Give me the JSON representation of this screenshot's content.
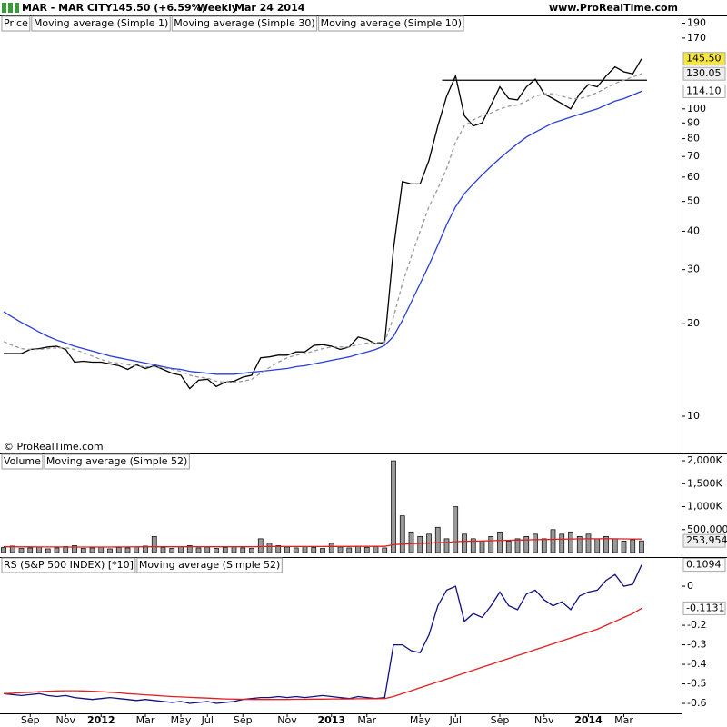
{
  "header": {
    "title": "MAR - MAR CITY",
    "quote": "145.50 (+6.59%)",
    "period": "Weekly",
    "date": "Mar 24 2014",
    "site": "www.ProRealTime.com",
    "copyright": "© ProRealTime.com"
  },
  "chart_data": [
    {
      "type": "line",
      "legend_title": "Price",
      "log_scale": true,
      "ylim": [
        7.67,
        200
      ],
      "yticks": [
        10,
        20,
        30,
        40,
        50,
        60,
        70,
        80,
        90,
        100,
        170,
        190
      ],
      "resistance": 124,
      "series": [
        {
          "name": "Moving average (Simple 1)",
          "color": "#000000",
          "legend_color": "#1a1a80",
          "label_fill": "#f5e642",
          "last_label": "145.50",
          "values": [
            16,
            16,
            16,
            16.5,
            16.6,
            16.8,
            16.9,
            16.5,
            15,
            15.1,
            15,
            15,
            14.8,
            14.6,
            14.2,
            14.7,
            14.3,
            14.6,
            14.2,
            13.8,
            13.6,
            12.3,
            13.1,
            13.2,
            12.5,
            12.9,
            13,
            13.4,
            13.6,
            15.5,
            15.6,
            15.8,
            15.8,
            16.2,
            16.2,
            17,
            17.1,
            16.9,
            16.5,
            16.8,
            18.1,
            17.8,
            17.2,
            17.4,
            35,
            58,
            57,
            57,
            68,
            88,
            110,
            128,
            95,
            88,
            90,
            103,
            118,
            108,
            107,
            118,
            125,
            112,
            108,
            104,
            100,
            112,
            120,
            118,
            128,
            137,
            132,
            130,
            145.5
          ]
        },
        {
          "name": "Moving average (Simple 30)",
          "color": "#2a3fd6",
          "label_fill": "#ffffff",
          "last_label": "114.10",
          "values": [
            21.9,
            21,
            20.2,
            19.5,
            18.8,
            18.2,
            17.7,
            17.3,
            16.9,
            16.6,
            16.3,
            16,
            15.7,
            15.5,
            15.3,
            15.1,
            14.9,
            14.7,
            14.5,
            14.3,
            14.2,
            14,
            13.9,
            13.8,
            13.7,
            13.7,
            13.7,
            13.8,
            13.9,
            14,
            14.1,
            14.2,
            14.3,
            14.5,
            14.6,
            14.8,
            15,
            15.2,
            15.4,
            15.6,
            15.9,
            16.2,
            16.5,
            17,
            18.2,
            20.5,
            23.5,
            27,
            31,
            36,
            42,
            48,
            53,
            57,
            61,
            65,
            69,
            73,
            77,
            81,
            84,
            87,
            90,
            92,
            94,
            96,
            98,
            100,
            103,
            106,
            108,
            111,
            114.1
          ]
        },
        {
          "name": "Moving average (Simple 10)",
          "color": "#999999",
          "dashed": true,
          "label_fill": "#eeeeee",
          "last_label": "130.05",
          "values": [
            17.5,
            17,
            16.6,
            16.5,
            16.5,
            16.6,
            16.7,
            16.7,
            16.5,
            16.1,
            15.7,
            15.3,
            15,
            14.9,
            14.7,
            14.6,
            14.5,
            14.5,
            14.4,
            14.2,
            14,
            13.6,
            13.4,
            13.3,
            13,
            12.9,
            12.9,
            13,
            13.2,
            13.8,
            14.4,
            15,
            15.5,
            15.8,
            16,
            16.3,
            16.6,
            16.8,
            16.8,
            16.8,
            17.1,
            17.3,
            17.4,
            17.4,
            21,
            27,
            33,
            40,
            48,
            55,
            64,
            78,
            88,
            92,
            95,
            97,
            100,
            102,
            103,
            106,
            110,
            112,
            112,
            110,
            108,
            108,
            110,
            113,
            117,
            121,
            124,
            127,
            130.05
          ]
        }
      ]
    },
    {
      "type": "bar",
      "ylim": [
        0,
        2140000
      ],
      "yticks": [
        {
          "value": 500000,
          "label": "500,000"
        },
        {
          "value": 1000000,
          "label": "1,000K"
        },
        {
          "value": 1500000,
          "label": "1,500K"
        },
        {
          "value": 2000000,
          "label": "2,000K"
        }
      ],
      "series": [
        {
          "name": "Volume",
          "kind": "bar",
          "color": "#999999",
          "label_fill": "#eeeeee",
          "last_label": "253,954",
          "values": [
            110000,
            140000,
            90000,
            100000,
            120000,
            80000,
            100000,
            130000,
            150000,
            90000,
            100000,
            120000,
            80000,
            110000,
            100000,
            120000,
            140000,
            350000,
            110000,
            90000,
            130000,
            150000,
            100000,
            120000,
            90000,
            110000,
            130000,
            100000,
            90000,
            300000,
            200000,
            150000,
            120000,
            100000,
            130000,
            110000,
            90000,
            200000,
            120000,
            100000,
            140000,
            110000,
            130000,
            100000,
            2000000,
            800000,
            450000,
            350000,
            400000,
            550000,
            300000,
            1000000,
            400000,
            300000,
            250000,
            350000,
            450000,
            250000,
            300000,
            350000,
            400000,
            300000,
            500000,
            400000,
            450000,
            350000,
            400000,
            300000,
            350000,
            300000,
            250000,
            280000,
            253954
          ]
        },
        {
          "name": "Moving average (Simple 52)",
          "kind": "line",
          "color": "#e02020",
          "values": [
            125000,
            124000,
            123000,
            122000,
            121000,
            120000,
            120000,
            119000,
            119000,
            118000,
            118000,
            118000,
            119000,
            120000,
            121000,
            122000,
            124000,
            125000,
            125000,
            125000,
            125000,
            126000,
            126000,
            126000,
            125000,
            125000,
            125000,
            124000,
            124000,
            128000,
            130000,
            130000,
            130000,
            130000,
            131000,
            131000,
            131000,
            133000,
            133000,
            133000,
            134000,
            134000,
            134000,
            134000,
            170000,
            185000,
            192000,
            198000,
            205000,
            215000,
            220000,
            238000,
            244000,
            248000,
            252000,
            258000,
            265000,
            268000,
            272000,
            276000,
            280000,
            283000,
            288000,
            292000,
            296000,
            298000,
            300000,
            300000,
            302000,
            300000,
            298000,
            296000,
            294000
          ]
        }
      ]
    },
    {
      "type": "line",
      "ylim": [
        -0.651,
        0.14
      ],
      "yticks": [
        0,
        -0.2,
        -0.3,
        -0.4,
        -0.5,
        -0.6
      ],
      "categories": [
        null,
        null,
        null,
        "Sep",
        null,
        null,
        null,
        "Nov",
        null,
        null,
        null,
        "2012",
        null,
        null,
        null,
        null,
        "Mar",
        null,
        null,
        null,
        "May",
        null,
        null,
        "Jul",
        null,
        null,
        null,
        "Sep",
        null,
        null,
        null,
        null,
        "Nov",
        null,
        null,
        null,
        null,
        "2013",
        null,
        null,
        null,
        "Mar",
        null,
        null,
        null,
        null,
        null,
        "May",
        null,
        null,
        null,
        "Jul",
        null,
        null,
        null,
        null,
        "Sep",
        null,
        null,
        null,
        null,
        "Nov",
        null,
        null,
        null,
        null,
        "2014",
        null,
        null,
        null,
        "Mar",
        null,
        null
      ],
      "series": [
        {
          "name": "RS (S&P 500 INDEX) [*10]",
          "color": "#101080",
          "label_fill": "#ffffff",
          "last_label": "0.1094",
          "values": [
            -0.55,
            -0.555,
            -0.56,
            -0.555,
            -0.55,
            -0.56,
            -0.565,
            -0.56,
            -0.57,
            -0.575,
            -0.58,
            -0.575,
            -0.57,
            -0.575,
            -0.58,
            -0.585,
            -0.58,
            -0.585,
            -0.59,
            -0.595,
            -0.59,
            -0.6,
            -0.595,
            -0.59,
            -0.6,
            -0.595,
            -0.59,
            -0.58,
            -0.575,
            -0.57,
            -0.57,
            -0.565,
            -0.57,
            -0.565,
            -0.57,
            -0.565,
            -0.56,
            -0.565,
            -0.57,
            -0.575,
            -0.565,
            -0.57,
            -0.575,
            -0.57,
            -0.3,
            -0.3,
            -0.33,
            -0.34,
            -0.25,
            -0.1,
            -0.02,
            0,
            -0.18,
            -0.14,
            -0.16,
            -0.1,
            -0.03,
            -0.1,
            -0.12,
            -0.04,
            -0.02,
            -0.07,
            -0.1,
            -0.08,
            -0.12,
            -0.05,
            -0.03,
            -0.02,
            0.03,
            0.06,
            0,
            0.01,
            0.1094
          ]
        },
        {
          "name": "Moving average (Simple 52)",
          "color": "#e02020",
          "label_fill": "#ffffff",
          "last_label": "-0.1131",
          "values": [
            -0.55,
            -0.548,
            -0.545,
            -0.543,
            -0.54,
            -0.538,
            -0.536,
            -0.535,
            -0.535,
            -0.536,
            -0.538,
            -0.54,
            -0.543,
            -0.546,
            -0.55,
            -0.553,
            -0.556,
            -0.559,
            -0.562,
            -0.565,
            -0.567,
            -0.569,
            -0.571,
            -0.573,
            -0.575,
            -0.577,
            -0.578,
            -0.579,
            -0.58,
            -0.58,
            -0.58,
            -0.58,
            -0.58,
            -0.579,
            -0.579,
            -0.578,
            -0.578,
            -0.577,
            -0.577,
            -0.577,
            -0.576,
            -0.576,
            -0.576,
            -0.575,
            -0.565,
            -0.55,
            -0.535,
            -0.52,
            -0.505,
            -0.49,
            -0.475,
            -0.46,
            -0.445,
            -0.43,
            -0.415,
            -0.4,
            -0.385,
            -0.37,
            -0.355,
            -0.34,
            -0.325,
            -0.31,
            -0.295,
            -0.28,
            -0.265,
            -0.25,
            -0.235,
            -0.22,
            -0.2,
            -0.18,
            -0.16,
            -0.14,
            -0.1131
          ]
        }
      ]
    }
  ]
}
